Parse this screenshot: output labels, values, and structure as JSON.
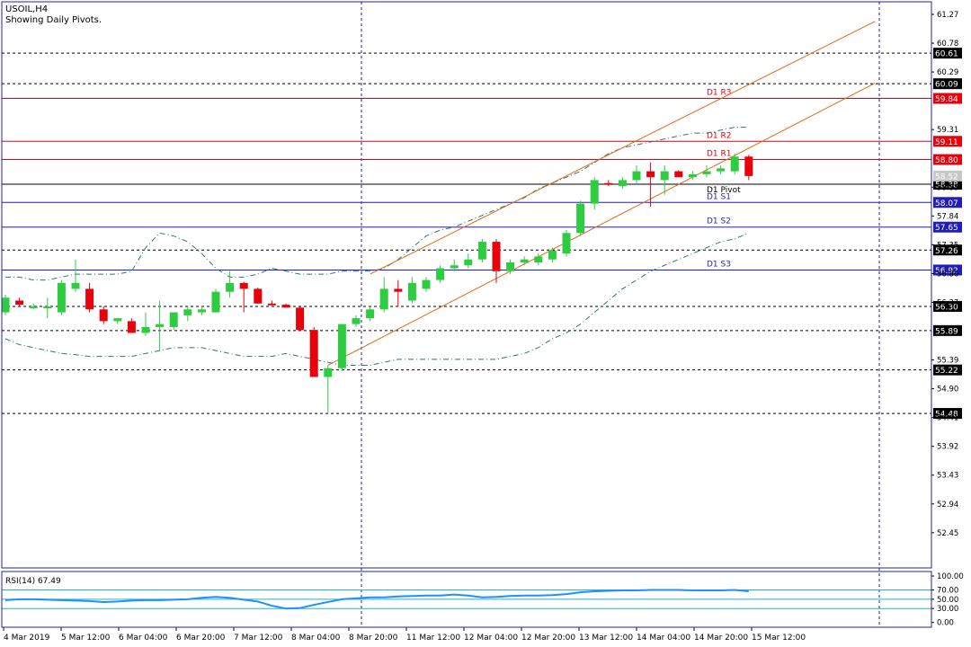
{
  "header": {
    "symbol": "USOIL,H4",
    "subtitle": "Showing Daily Pivots."
  },
  "colors": {
    "bull": "#2ecc40",
    "bear": "#e8000b",
    "frame": "#1f1fb5",
    "channel": "#e06a1a",
    "bands": "#2a7a6a",
    "resistance": "#e8000b",
    "support": "#1f1fb5",
    "pivot": "#000000",
    "rsi": "#1e90ff",
    "rsi_level": "#2ab0c0"
  },
  "pivots": [
    {
      "label": "D1  R3",
      "value": 59.84,
      "kind": "resistance"
    },
    {
      "label": "D1  R2",
      "value": 59.11,
      "kind": "resistance"
    },
    {
      "label": "D1  R1",
      "value": 58.8,
      "kind": "resistance"
    },
    {
      "label": "D1  Pivot",
      "value": 58.38,
      "kind": "pivot"
    },
    {
      "label": "D1  S1",
      "value": 58.07,
      "kind": "support"
    },
    {
      "label": "D1  S2",
      "value": 57.65,
      "kind": "support"
    },
    {
      "label": "D1  S3",
      "value": 56.92,
      "kind": "support"
    }
  ],
  "dotted_levels": [
    60.61,
    60.09,
    57.26,
    56.3,
    55.89,
    55.22,
    54.48
  ],
  "current_price": "58.52",
  "y_ticks": [
    "61.27",
    "60.78",
    "60.29",
    "59.31",
    "58.33",
    "57.84",
    "57.35",
    "56.86",
    "56.37",
    "55.39",
    "54.90",
    "54.41",
    "53.92",
    "53.43",
    "52.94",
    "52.45"
  ],
  "x_labels": [
    "4 Mar 2019",
    "5 Mar 12:00",
    "6 Mar 04:00",
    "6 Mar 20:00",
    "7 Mar 12:00",
    "8 Mar 04:00",
    "8 Mar 20:00",
    "11 Mar 12:00",
    "12 Mar 04:00",
    "12 Mar 20:00",
    "13 Mar 12:00",
    "14 Mar 04:00",
    "14 Mar 20:00",
    "15 Mar 12:00"
  ],
  "rsi": {
    "label": "RSI(14) 67.49",
    "ticks": [
      "100.00",
      "70.00",
      "50.00",
      "30.00",
      "0.00"
    ],
    "levels": [
      70,
      50,
      30
    ],
    "values": [
      48,
      50,
      50,
      49,
      48,
      47,
      46,
      44,
      45,
      47,
      48,
      48,
      49,
      50,
      53,
      55,
      53,
      49,
      45,
      36,
      30,
      31,
      38,
      44,
      50,
      52,
      54,
      54,
      56,
      57,
      58,
      58,
      60,
      58,
      54,
      55,
      57,
      58,
      58,
      59,
      61,
      65,
      67,
      68,
      69,
      69,
      70,
      70,
      70,
      69,
      69,
      69,
      70,
      67
    ]
  },
  "chart_data": {
    "type": "candlestick",
    "title": "USOIL,H4",
    "subtitle": "Showing Daily Pivots.",
    "ylim": [
      52.2,
      61.4
    ],
    "candles": [
      {
        "o": 56.2,
        "h": 56.5,
        "l": 56.15,
        "c": 56.45
      },
      {
        "o": 56.4,
        "h": 56.45,
        "l": 56.3,
        "c": 56.33
      },
      {
        "o": 56.3,
        "h": 56.35,
        "l": 56.25,
        "c": 56.3
      },
      {
        "o": 56.3,
        "h": 56.45,
        "l": 56.1,
        "c": 56.3
      },
      {
        "o": 56.2,
        "h": 56.75,
        "l": 56.15,
        "c": 56.7
      },
      {
        "o": 56.6,
        "h": 57.1,
        "l": 56.55,
        "c": 56.7
      },
      {
        "o": 56.6,
        "h": 56.7,
        "l": 56.2,
        "c": 56.25
      },
      {
        "o": 56.25,
        "h": 56.3,
        "l": 56.0,
        "c": 56.05
      },
      {
        "o": 56.05,
        "h": 56.1,
        "l": 56.0,
        "c": 56.1
      },
      {
        "o": 56.05,
        "h": 56.1,
        "l": 55.85,
        "c": 55.85
      },
      {
        "o": 55.85,
        "h": 56.2,
        "l": 55.8,
        "c": 55.95
      },
      {
        "o": 55.95,
        "h": 56.4,
        "l": 55.55,
        "c": 56.0
      },
      {
        "o": 55.95,
        "h": 56.2,
        "l": 55.9,
        "c": 56.2
      },
      {
        "o": 56.15,
        "h": 56.3,
        "l": 56.05,
        "c": 56.25
      },
      {
        "o": 56.2,
        "h": 56.3,
        "l": 56.15,
        "c": 56.25
      },
      {
        "o": 56.2,
        "h": 56.6,
        "l": 56.2,
        "c": 56.55
      },
      {
        "o": 56.55,
        "h": 56.9,
        "l": 56.45,
        "c": 56.7
      },
      {
        "o": 56.7,
        "h": 56.72,
        "l": 56.2,
        "c": 56.6
      },
      {
        "o": 56.6,
        "h": 56.62,
        "l": 56.35,
        "c": 56.35
      },
      {
        "o": 56.35,
        "h": 56.4,
        "l": 56.32,
        "c": 56.33
      },
      {
        "o": 56.33,
        "h": 56.35,
        "l": 56.28,
        "c": 56.28
      },
      {
        "o": 56.28,
        "h": 56.3,
        "l": 55.9,
        "c": 55.9
      },
      {
        "o": 55.9,
        "h": 55.95,
        "l": 55.1,
        "c": 55.1
      },
      {
        "o": 55.1,
        "h": 55.3,
        "l": 54.5,
        "c": 55.25
      },
      {
        "o": 55.25,
        "h": 56.0,
        "l": 55.2,
        "c": 56.0
      },
      {
        "o": 56.0,
        "h": 56.15,
        "l": 55.95,
        "c": 56.1
      },
      {
        "o": 56.1,
        "h": 56.3,
        "l": 56.05,
        "c": 56.25
      },
      {
        "o": 56.25,
        "h": 56.8,
        "l": 56.2,
        "c": 56.6
      },
      {
        "o": 56.6,
        "h": 56.75,
        "l": 56.3,
        "c": 56.55
      },
      {
        "o": 56.4,
        "h": 56.8,
        "l": 56.35,
        "c": 56.7
      },
      {
        "o": 56.6,
        "h": 56.8,
        "l": 56.55,
        "c": 56.75
      },
      {
        "o": 56.75,
        "h": 57.0,
        "l": 56.7,
        "c": 56.95
      },
      {
        "o": 56.95,
        "h": 57.1,
        "l": 56.9,
        "c": 57.0
      },
      {
        "o": 57.0,
        "h": 57.2,
        "l": 56.95,
        "c": 57.1
      },
      {
        "o": 57.1,
        "h": 57.45,
        "l": 57.05,
        "c": 57.4
      },
      {
        "o": 57.4,
        "h": 57.45,
        "l": 56.7,
        "c": 56.9
      },
      {
        "o": 56.9,
        "h": 57.1,
        "l": 56.85,
        "c": 57.05
      },
      {
        "o": 57.05,
        "h": 57.15,
        "l": 57.0,
        "c": 57.1
      },
      {
        "o": 57.05,
        "h": 57.2,
        "l": 57.0,
        "c": 57.15
      },
      {
        "o": 57.1,
        "h": 57.3,
        "l": 57.05,
        "c": 57.25
      },
      {
        "o": 57.2,
        "h": 57.6,
        "l": 57.15,
        "c": 57.55
      },
      {
        "o": 57.55,
        "h": 58.1,
        "l": 57.5,
        "c": 58.05
      },
      {
        "o": 58.05,
        "h": 58.5,
        "l": 57.95,
        "c": 58.45
      },
      {
        "o": 58.4,
        "h": 58.45,
        "l": 58.35,
        "c": 58.38
      },
      {
        "o": 58.35,
        "h": 58.5,
        "l": 58.3,
        "c": 58.45
      },
      {
        "o": 58.45,
        "h": 58.7,
        "l": 58.4,
        "c": 58.6
      },
      {
        "o": 58.6,
        "h": 58.75,
        "l": 58.0,
        "c": 58.5
      },
      {
        "o": 58.45,
        "h": 58.7,
        "l": 58.2,
        "c": 58.6
      },
      {
        "o": 58.6,
        "h": 58.62,
        "l": 58.5,
        "c": 58.5
      },
      {
        "o": 58.5,
        "h": 58.6,
        "l": 58.45,
        "c": 58.55
      },
      {
        "o": 58.55,
        "h": 58.7,
        "l": 58.5,
        "c": 58.6
      },
      {
        "o": 58.6,
        "h": 58.7,
        "l": 58.55,
        "c": 58.65
      },
      {
        "o": 58.6,
        "h": 58.9,
        "l": 58.55,
        "c": 58.85
      },
      {
        "o": 58.85,
        "h": 58.88,
        "l": 58.45,
        "c": 58.52
      }
    ],
    "channel": {
      "lower": [
        {
          "i": 23,
          "v": 55.3
        },
        {
          "i": 62,
          "v": 60.1
        }
      ],
      "upper": [
        {
          "i": 26,
          "v": 56.85
        },
        {
          "i": 62,
          "v": 61.15
        }
      ]
    },
    "bands": {
      "upper": [
        56.8,
        56.8,
        56.75,
        56.75,
        56.8,
        56.85,
        56.85,
        56.85,
        56.85,
        56.9,
        57.3,
        57.55,
        57.5,
        57.4,
        57.2,
        56.95,
        56.8,
        56.8,
        56.85,
        56.95,
        56.9,
        56.85,
        56.85,
        56.85,
        56.9,
        56.9,
        56.9,
        56.95,
        57.1,
        57.3,
        57.5,
        57.6,
        57.65,
        57.75,
        57.85,
        57.95,
        58.05,
        58.15,
        58.3,
        58.4,
        58.5,
        58.6,
        58.75,
        58.9,
        59.0,
        59.05,
        59.1,
        59.15,
        59.2,
        59.25,
        59.25,
        59.3,
        59.35,
        59.35
      ],
      "lower": [
        55.75,
        55.65,
        55.6,
        55.55,
        55.5,
        55.48,
        55.45,
        55.45,
        55.45,
        55.45,
        55.5,
        55.55,
        55.6,
        55.6,
        55.6,
        55.55,
        55.5,
        55.45,
        55.45,
        55.45,
        55.5,
        55.45,
        55.4,
        55.35,
        55.3,
        55.3,
        55.3,
        55.35,
        55.4,
        55.4,
        55.4,
        55.4,
        55.4,
        55.4,
        55.4,
        55.4,
        55.45,
        55.5,
        55.6,
        55.75,
        55.85,
        56.0,
        56.2,
        56.4,
        56.6,
        56.75,
        56.9,
        57.0,
        57.1,
        57.2,
        57.3,
        57.4,
        57.45,
        57.55
      ]
    }
  }
}
